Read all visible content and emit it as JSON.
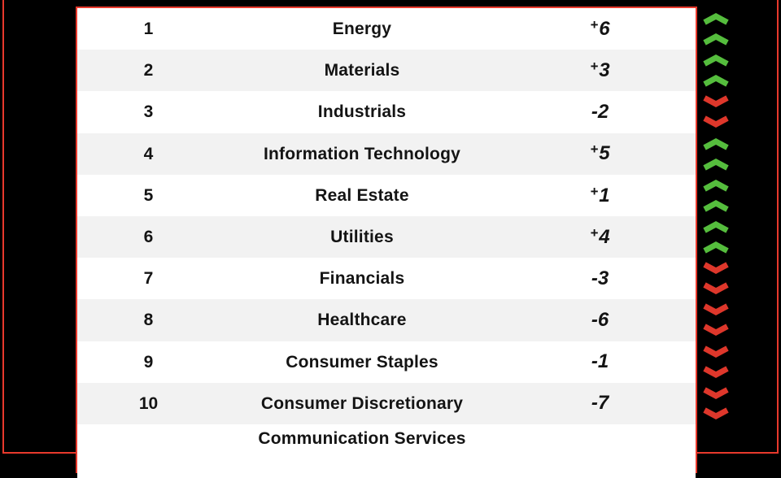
{
  "chart_data": {
    "type": "table",
    "title": "",
    "columns": [
      "rank",
      "sector",
      "rank_change",
      "trend"
    ],
    "rows": [
      {
        "rank": "1",
        "sector": "Energy",
        "change": "+6",
        "trend": "up",
        "partial": false
      },
      {
        "rank": "2",
        "sector": "Materials",
        "change": "+3",
        "trend": "up",
        "partial": false
      },
      {
        "rank": "3",
        "sector": "Industrials",
        "change": "-2",
        "trend": "down",
        "partial": false
      },
      {
        "rank": "4",
        "sector": "Information Technology",
        "change": "+5",
        "trend": "up",
        "partial": false
      },
      {
        "rank": "5",
        "sector": "Real Estate",
        "change": "+1",
        "trend": "up",
        "partial": false
      },
      {
        "rank": "6",
        "sector": "Utilities",
        "change": "+4",
        "trend": "up",
        "partial": false
      },
      {
        "rank": "7",
        "sector": "Financials",
        "change": "-3",
        "trend": "down",
        "partial": false
      },
      {
        "rank": "8",
        "sector": "Healthcare",
        "change": "-6",
        "trend": "down",
        "partial": false
      },
      {
        "rank": "9",
        "sector": "Consumer Staples",
        "change": "-1",
        "trend": "down",
        "partial": false
      },
      {
        "rank": "10",
        "sector": "Consumer Discretionary",
        "change": "-7",
        "trend": "down",
        "partial": false
      },
      {
        "rank": "",
        "sector": "Communication Services",
        "change": "",
        "trend": "",
        "partial": true
      }
    ]
  },
  "colors": {
    "background": "#000000",
    "frame_red": "#e8392c",
    "row_white": "#ffffff",
    "row_alt_gray": "#f2f2f2",
    "text": "#141414",
    "trend_up_green": "#55bd3d",
    "trend_down_red": "#de372b"
  },
  "icons": {
    "up": "chevron-up-icon",
    "down": "chevron-down-icon"
  }
}
